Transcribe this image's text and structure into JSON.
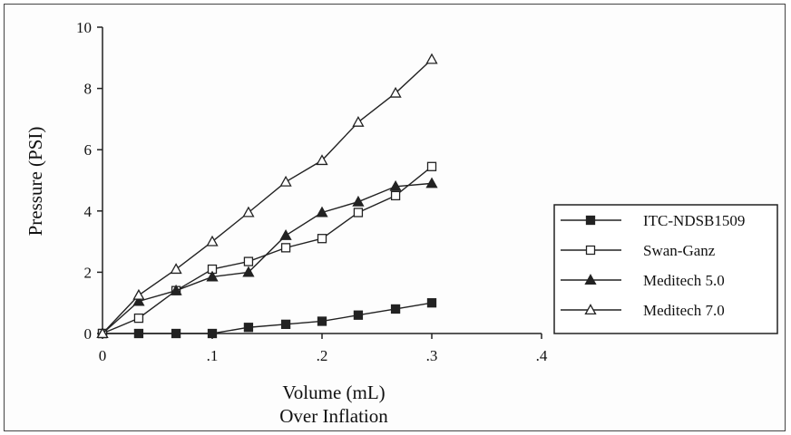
{
  "chart_data": {
    "type": "line",
    "xlabel": "Volume (mL)",
    "xlabel_line2": "Over Inflation",
    "ylabel": "Pressure (PSI)",
    "xlim": [
      0,
      0.4
    ],
    "ylim": [
      0,
      10
    ],
    "xticks": [
      {
        "value": 0,
        "label": "0"
      },
      {
        "value": 0.1,
        "label": ".1"
      },
      {
        "value": 0.2,
        "label": ".2"
      },
      {
        "value": 0.3,
        "label": ".3"
      },
      {
        "value": 0.4,
        "label": ".4"
      }
    ],
    "yticks": [
      {
        "value": 0,
        "label": "0"
      },
      {
        "value": 2,
        "label": "2"
      },
      {
        "value": 4,
        "label": "4"
      },
      {
        "value": 6,
        "label": "6"
      },
      {
        "value": 8,
        "label": "8"
      },
      {
        "value": 10,
        "label": "10"
      }
    ],
    "grid": false,
    "legend_position": "right",
    "line_color": "#222222",
    "series": [
      {
        "name": "ITC-NDSB1509",
        "marker": "filled-square",
        "x": [
          0,
          0.033,
          0.067,
          0.1,
          0.133,
          0.167,
          0.2,
          0.233,
          0.267,
          0.3
        ],
        "y": [
          0,
          0,
          0,
          0,
          0.2,
          0.3,
          0.4,
          0.6,
          0.8,
          1.0
        ]
      },
      {
        "name": "Swan-Ganz",
        "marker": "open-square",
        "x": [
          0,
          0.033,
          0.067,
          0.1,
          0.133,
          0.167,
          0.2,
          0.233,
          0.267,
          0.3
        ],
        "y": [
          0,
          0.5,
          1.4,
          2.1,
          2.35,
          2.8,
          3.1,
          3.95,
          4.5,
          5.45
        ]
      },
      {
        "name": "Meditech 5.0",
        "marker": "filled-triangle",
        "x": [
          0,
          0.033,
          0.067,
          0.1,
          0.133,
          0.167,
          0.2,
          0.233,
          0.267,
          0.3
        ],
        "y": [
          0,
          1.05,
          1.4,
          1.85,
          2.0,
          3.2,
          3.95,
          4.3,
          4.8,
          4.9
        ]
      },
      {
        "name": "Meditech 7.0",
        "marker": "open-triangle",
        "x": [
          0,
          0.033,
          0.067,
          0.1,
          0.133,
          0.167,
          0.2,
          0.233,
          0.267,
          0.3
        ],
        "y": [
          0,
          1.25,
          2.1,
          3.0,
          3.95,
          4.95,
          5.65,
          6.9,
          7.85,
          8.95
        ]
      }
    ]
  }
}
